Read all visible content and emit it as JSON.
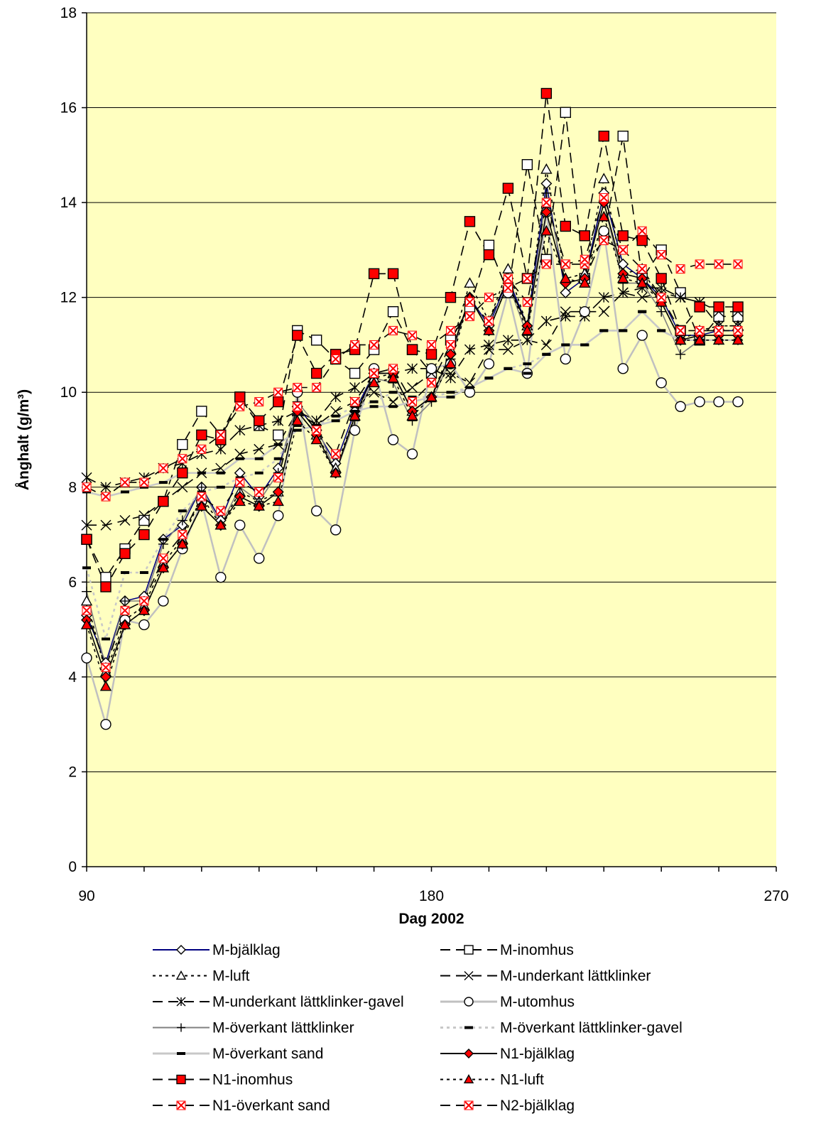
{
  "chart_data": {
    "type": "line",
    "title": "",
    "xlabel": "Dag 2002",
    "ylabel": "Ånghalt (g/m³)",
    "xlim": [
      90,
      270
    ],
    "ylim": [
      0,
      18
    ],
    "x_ticks": [
      "90",
      "180",
      "270"
    ],
    "y_ticks": [
      "0",
      "2",
      "4",
      "6",
      "8",
      "10",
      "12",
      "14",
      "16",
      "18"
    ],
    "grid": "horizontal",
    "plot_background": "#ffffc0",
    "legend_position": "bottom",
    "x": [
      90,
      95,
      100,
      105,
      110,
      115,
      120,
      125,
      130,
      135,
      140,
      145,
      150,
      155,
      160,
      165,
      170,
      175,
      180,
      185,
      190,
      195,
      200,
      205,
      210,
      215,
      220,
      225,
      230,
      235,
      240,
      245,
      250,
      255,
      260
    ],
    "series": [
      {
        "name": "M-bjälklag",
        "color": "#000080",
        "dash": "solid",
        "marker": "diamond",
        "marker_fill": "#ffffff",
        "values": [
          5.3,
          4.3,
          5.6,
          5.7,
          6.9,
          7.2,
          8.0,
          7.3,
          8.3,
          7.8,
          8.4,
          9.7,
          9.2,
          8.5,
          9.6,
          10.4,
          10.4,
          9.6,
          9.9,
          10.8,
          12.0,
          11.4,
          12.4,
          11.4,
          14.4,
          12.1,
          12.4,
          14.2,
          12.7,
          12.4,
          12.0,
          11.2,
          11.2,
          11.3,
          11.3
        ]
      },
      {
        "name": "M-inomhus",
        "color": "#000000",
        "dash": "longdash",
        "marker": "square",
        "marker_fill": "#ffffff",
        "values": [
          6.9,
          6.1,
          6.7,
          7.3,
          7.7,
          8.9,
          9.6,
          9.1,
          9.9,
          9.3,
          9.1,
          11.3,
          11.1,
          10.7,
          10.4,
          10.9,
          11.7,
          10.9,
          10.4,
          11.1,
          11.8,
          13.1,
          12.1,
          14.8,
          12.8,
          15.9,
          12.4,
          13.3,
          15.4,
          12.4,
          13.0,
          12.1,
          11.1,
          11.6,
          11.6
        ]
      },
      {
        "name": "M-luft",
        "color": "#000000",
        "dash": "dotted",
        "marker": "triangle",
        "marker_fill": "#ffffff",
        "values": [
          5.6,
          4.1,
          5.2,
          5.5,
          6.4,
          6.9,
          7.8,
          7.2,
          7.9,
          7.7,
          7.9,
          9.6,
          9.1,
          8.4,
          9.5,
          10.3,
          10.4,
          9.6,
          9.9,
          10.9,
          12.3,
          11.5,
          12.6,
          11.4,
          14.7,
          12.4,
          12.5,
          14.5,
          12.5,
          12.6,
          11.9,
          11.1,
          11.3,
          11.4,
          11.4
        ]
      },
      {
        "name": "M-underkant lättklinker",
        "color": "#000000",
        "dash": "longdash",
        "marker": "x",
        "marker_fill": "none",
        "values": [
          7.2,
          7.2,
          7.3,
          7.4,
          7.7,
          8.0,
          8.3,
          8.4,
          8.7,
          8.8,
          8.9,
          9.6,
          9.3,
          9.6,
          9.8,
          10.0,
          9.8,
          10.1,
          10.4,
          10.4,
          10.2,
          10.9,
          10.9,
          11.1,
          11.0,
          11.7,
          11.7,
          11.7,
          12.1,
          12.0,
          12.1,
          12.0,
          11.9,
          11.7,
          11.7
        ]
      },
      {
        "name": "M-underkant lättklinker-gavel",
        "color": "#000000",
        "dash": "longdash",
        "marker": "asterisk",
        "marker_fill": "none",
        "values": [
          8.2,
          8.0,
          8.1,
          8.2,
          8.4,
          8.5,
          8.7,
          8.8,
          9.2,
          9.3,
          9.4,
          9.6,
          9.4,
          9.9,
          10.1,
          10.4,
          10.4,
          10.5,
          10.5,
          10.3,
          10.9,
          11.0,
          11.1,
          11.1,
          11.5,
          11.6,
          11.6,
          12.0,
          12.1,
          12.2,
          12.2,
          12.0,
          11.9,
          11.4,
          11.4
        ]
      },
      {
        "name": "M-utomhus",
        "color": "#c0c0c0",
        "dash": "solid",
        "marker": "circle",
        "marker_fill": "#ffffff",
        "values": [
          4.4,
          3.0,
          5.2,
          5.1,
          5.6,
          6.7,
          7.7,
          6.1,
          7.2,
          6.5,
          7.4,
          10.0,
          7.5,
          7.1,
          9.2,
          10.5,
          9.0,
          8.7,
          10.5,
          10.6,
          10.0,
          10.6,
          12.1,
          10.4,
          13.8,
          10.7,
          11.7,
          13.4,
          10.5,
          11.2,
          10.2,
          9.7,
          9.8,
          9.8,
          9.8
        ]
      },
      {
        "name": "M-överkant lättklinker",
        "color": "#808080",
        "dash": "solid",
        "marker": "plus",
        "marker_fill": "none",
        "values": [
          5.8,
          4.2,
          5.6,
          5.6,
          6.8,
          7.3,
          8.0,
          7.2,
          8.0,
          7.7,
          8.3,
          9.8,
          9.3,
          8.3,
          9.4,
          10.3,
          10.2,
          9.4,
          9.8,
          10.7,
          12.0,
          11.3,
          12.3,
          11.2,
          14.2,
          12.3,
          12.4,
          14.0,
          12.3,
          12.3,
          11.7,
          10.8,
          11.1,
          11.1,
          11.1
        ]
      },
      {
        "name": "M-överkant lättklinker-gavel",
        "color": "#c8c8c8",
        "dash": "dotted",
        "marker": "dash",
        "marker_fill": "none",
        "values": [
          6.3,
          4.8,
          6.2,
          6.2,
          6.9,
          7.5,
          7.9,
          8.0,
          8.2,
          8.3,
          8.6,
          9.3,
          9.3,
          9.5,
          9.7,
          9.8,
          10.0,
          9.9,
          9.9,
          10.0,
          10.1,
          10.3,
          10.5,
          10.6,
          10.8,
          11.0,
          11.0,
          11.3,
          11.3,
          11.7,
          11.3,
          11.1,
          11.1,
          11.1,
          11.1
        ]
      },
      {
        "name": "M-överkant sand",
        "color": "#c8c8c8",
        "dash": "solid",
        "marker": "dash",
        "marker_fill": "none",
        "values": [
          7.9,
          7.8,
          7.9,
          8.0,
          8.1,
          8.3,
          8.3,
          8.3,
          8.6,
          8.6,
          8.9,
          9.2,
          9.3,
          9.4,
          9.6,
          9.7,
          9.7,
          9.8,
          9.9,
          9.9,
          10.1,
          10.3,
          10.5,
          10.4,
          10.8,
          11.0,
          11.0,
          11.3,
          11.3,
          11.7,
          11.3,
          11.1,
          11.1,
          11.1,
          11.1
        ]
      },
      {
        "name": "N1-bjälklag",
        "color": "#000000",
        "dash": "solid",
        "marker": "diamond",
        "marker_fill": "#ff0000",
        "values": [
          5.2,
          4.0,
          5.1,
          5.4,
          6.3,
          6.8,
          7.6,
          7.2,
          7.8,
          7.6,
          7.9,
          9.6,
          9.1,
          8.3,
          9.5,
          10.4,
          10.4,
          9.6,
          9.9,
          10.8,
          12.0,
          11.3,
          12.3,
          11.4,
          13.8,
          12.3,
          12.4,
          14.0,
          12.5,
          12.4,
          11.9,
          11.1,
          11.2,
          11.2,
          11.2
        ]
      },
      {
        "name": "N1-inomhus",
        "color": "#000000",
        "dash": "longdash",
        "marker": "square",
        "marker_fill": "#ff0000",
        "values": [
          6.9,
          5.9,
          6.6,
          7.0,
          7.7,
          8.3,
          9.1,
          9.0,
          9.9,
          9.4,
          9.8,
          11.2,
          10.4,
          10.8,
          10.9,
          12.5,
          12.5,
          10.9,
          10.8,
          12.0,
          13.6,
          12.9,
          14.3,
          12.4,
          16.3,
          13.5,
          13.3,
          15.4,
          13.3,
          13.2,
          12.4,
          11.3,
          11.8,
          11.8,
          11.8
        ]
      },
      {
        "name": "N1-luft",
        "color": "#000000",
        "dash": "dotted",
        "marker": "triangle",
        "marker_fill": "#ff0000",
        "values": [
          5.1,
          3.8,
          5.1,
          5.4,
          6.3,
          6.8,
          7.6,
          7.2,
          7.7,
          7.6,
          7.7,
          9.4,
          9.0,
          8.3,
          9.5,
          10.2,
          10.3,
          9.5,
          9.9,
          10.6,
          12.0,
          11.3,
          12.3,
          11.3,
          13.4,
          12.4,
          12.3,
          13.7,
          12.4,
          12.3,
          11.9,
          11.1,
          11.1,
          11.1,
          11.1
        ]
      },
      {
        "name": "N1-överkant sand",
        "color": "#000000",
        "dash": "longdash",
        "marker": "xbox",
        "marker_fill": "#ff0000",
        "values": [
          8.0,
          7.8,
          8.1,
          8.1,
          8.4,
          8.6,
          8.8,
          9.1,
          9.7,
          9.8,
          10.0,
          10.1,
          10.1,
          10.7,
          11.0,
          11.0,
          11.3,
          11.2,
          11.0,
          11.3,
          11.6,
          12.0,
          12.2,
          12.4,
          12.7,
          12.7,
          12.7,
          13.2,
          13.0,
          13.4,
          12.9,
          12.6,
          12.7,
          12.7,
          12.7
        ]
      },
      {
        "name": "N2-bjälklag",
        "color": "#000000",
        "dash": "longdash",
        "marker": "xbox",
        "marker_fill": "#ff0000",
        "values": [
          5.4,
          4.2,
          5.4,
          5.6,
          6.5,
          7.0,
          7.8,
          7.5,
          8.1,
          7.9,
          8.2,
          9.7,
          9.2,
          8.7,
          9.8,
          10.4,
          10.5,
          9.8,
          10.2,
          11.0,
          11.9,
          11.5,
          12.4,
          11.9,
          14.0,
          12.7,
          12.8,
          14.1,
          13.0,
          12.6,
          12.0,
          11.3,
          11.3,
          11.3,
          11.3
        ]
      }
    ]
  }
}
